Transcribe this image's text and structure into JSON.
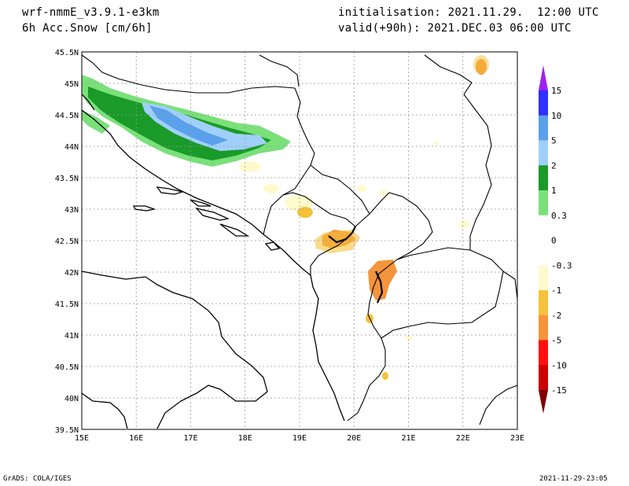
{
  "header": {
    "model": "wrf-nmmE_v3.9.1-e3km",
    "field": "6h Acc.Snow [cm/6h]",
    "init": "initialisation: 2021.11.29.  12:00 UTC",
    "valid": "valid(+90h): 2021.DEC.03 06:00 UTC"
  },
  "footer": {
    "left": "GrADS: COLA/IGES",
    "right": "2021-11-29-23:05"
  },
  "axes": {
    "lon_labels": [
      "15E",
      "16E",
      "17E",
      "18E",
      "19E",
      "20E",
      "21E",
      "22E",
      "23E"
    ],
    "lat_labels": [
      "45.5N",
      "45N",
      "44.5N",
      "44N",
      "43.5N",
      "43N",
      "42.5N",
      "42N",
      "41.5N",
      "41N",
      "40.5N",
      "40N",
      "39.5N"
    ]
  },
  "legend": {
    "labels": [
      "15",
      "10",
      "5",
      "2",
      "1",
      "0.3",
      "0",
      "-0.3",
      "-1",
      "-2",
      "-5",
      "-10",
      "-15"
    ],
    "colors": [
      "#3030ff",
      "#5aa0ea",
      "#a0d0fa",
      "#1a9a28",
      "#7ae07a",
      "#ffffff",
      "#ffffff",
      "#fffacc",
      "#f5c23a",
      "#f5943a",
      "#ff1010",
      "#cc0000",
      "#8c0000"
    ],
    "top_arrow_color": "#a020f0",
    "bottom_arrow_color": "#800000"
  }
}
